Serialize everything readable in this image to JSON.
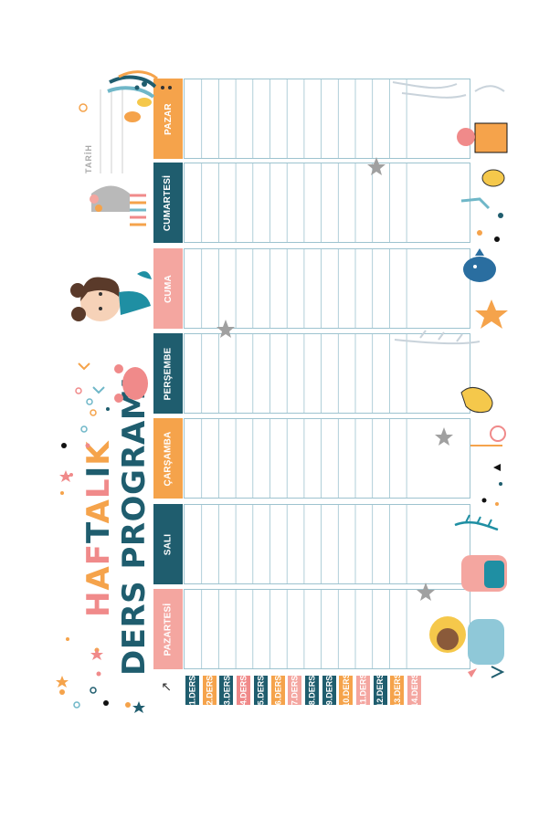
{
  "title": {
    "line1_letters": [
      "H",
      "A",
      "F",
      "T",
      "A",
      "L",
      "I",
      "K"
    ],
    "line1_colors": [
      "#f08a8a",
      "#f5a34b",
      "#f08a8a",
      "#1f5d6e",
      "#f5a34b",
      "#f08a8a",
      "#1f5d6e",
      "#f5a34b"
    ],
    "line2": "DERS PROGRAMI"
  },
  "date_label": "TARİH",
  "logo_text": "↗",
  "days": [
    {
      "label": "PAZAR",
      "color": "#f5a34b"
    },
    {
      "label": "CUMARTESİ",
      "color": "#1f5d6e"
    },
    {
      "label": "CUMA",
      "color": "#f4a6a0"
    },
    {
      "label": "PERŞEMBE",
      "color": "#1f5d6e"
    },
    {
      "label": "ÇARŞAMBA",
      "color": "#f5a34b"
    },
    {
      "label": "SALI",
      "color": "#1f5d6e"
    },
    {
      "label": "PAZARTESİ",
      "color": "#f4a6a0"
    }
  ],
  "lessons": [
    {
      "label": "1.DERS",
      "color": "#1f5d6e"
    },
    {
      "label": "2.DERS",
      "color": "#f5a34b"
    },
    {
      "label": "3.DERS",
      "color": "#1f5d6e"
    },
    {
      "label": "4.DERS",
      "color": "#f08a8a"
    },
    {
      "label": "5.DERS",
      "color": "#1f5d6e"
    },
    {
      "label": "6.DERS",
      "color": "#f5a34b"
    },
    {
      "label": "7.DERS",
      "color": "#f4a6a0"
    },
    {
      "label": "8.DERS",
      "color": "#1f5d6e"
    },
    {
      "label": "9.DERS",
      "color": "#1f5d6e"
    },
    {
      "label": "10.DERS",
      "color": "#f5a34b"
    },
    {
      "label": "11.DERS",
      "color": "#f4a6a0"
    },
    {
      "label": "12.DERS",
      "color": "#1f5d6e"
    },
    {
      "label": "13.DERS",
      "color": "#f5a34b"
    },
    {
      "label": "14.DERS",
      "color": "#f4a6a0"
    }
  ],
  "colors": {
    "teal": "#1f5d6e",
    "orange": "#f5a34b",
    "pink": "#f4a6a0",
    "grid": "#9dc3cf"
  }
}
